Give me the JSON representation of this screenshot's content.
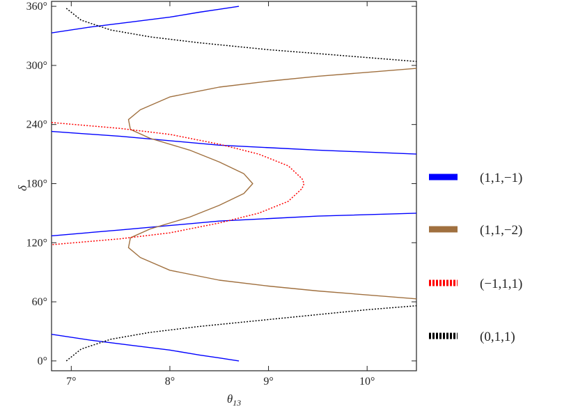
{
  "chart_data": {
    "type": "line",
    "title": "",
    "xlabel": "θ13",
    "ylabel": "δ",
    "xlim": [
      6.8,
      10.5
    ],
    "ylim": [
      -10,
      365
    ],
    "x_ticks": [
      {
        "value": 7,
        "label": "7°"
      },
      {
        "value": 8,
        "label": "8°"
      },
      {
        "value": 9,
        "label": "9°"
      },
      {
        "value": 10,
        "label": "10°"
      }
    ],
    "y_ticks": [
      {
        "value": 0,
        "label": "0°"
      },
      {
        "value": 60,
        "label": "60°"
      },
      {
        "value": 120,
        "label": "120°"
      },
      {
        "value": 180,
        "label": "180°"
      },
      {
        "value": 240,
        "label": "240°"
      },
      {
        "value": 300,
        "label": "300°"
      },
      {
        "value": 360,
        "label": "360°"
      }
    ],
    "grid": false,
    "legend_position": "right",
    "series": [
      {
        "name": "(1,1,−1)",
        "color": "#0000ff",
        "style": "solid",
        "segments": [
          [
            [
              6.8,
              333
            ],
            [
              7.2,
              339
            ],
            [
              7.6,
              344
            ],
            [
              8.0,
              349
            ],
            [
              8.3,
              354
            ],
            [
              8.5,
              357
            ],
            [
              8.7,
              360
            ]
          ],
          [
            [
              6.8,
              233
            ],
            [
              7.5,
              228
            ],
            [
              8.5,
              219
            ],
            [
              9.5,
              214
            ],
            [
              10.5,
              210
            ]
          ],
          [
            [
              6.8,
              127
            ],
            [
              7.5,
              133
            ],
            [
              8.5,
              142
            ],
            [
              9.5,
              147
            ],
            [
              10.5,
              150
            ]
          ],
          [
            [
              6.8,
              27
            ],
            [
              7.2,
              21
            ],
            [
              7.6,
              16
            ],
            [
              8.0,
              11
            ],
            [
              8.3,
              6
            ],
            [
              8.5,
              3
            ],
            [
              8.7,
              0
            ]
          ]
        ]
      },
      {
        "name": "(1,1,−2)",
        "color": "#a0703f",
        "style": "solid",
        "segments": [
          [
            [
              10.5,
              297
            ],
            [
              10.0,
              293
            ],
            [
              9.5,
              289
            ],
            [
              9.0,
              284
            ],
            [
              8.5,
              278
            ],
            [
              8.0,
              268
            ],
            [
              7.7,
              255
            ],
            [
              7.58,
              245
            ],
            [
              7.6,
              235
            ],
            [
              7.8,
              226
            ],
            [
              8.2,
              214
            ],
            [
              8.5,
              202
            ],
            [
              8.75,
              190
            ],
            [
              8.84,
              180
            ],
            [
              8.75,
              170
            ],
            [
              8.5,
              158
            ],
            [
              8.2,
              146
            ],
            [
              7.8,
              134
            ],
            [
              7.6,
              125
            ],
            [
              7.58,
              115
            ],
            [
              7.7,
              105
            ],
            [
              8.0,
              92
            ],
            [
              8.5,
              82
            ],
            [
              9.0,
              76
            ],
            [
              9.5,
              71
            ],
            [
              10.0,
              67
            ],
            [
              10.5,
              63
            ]
          ]
        ]
      },
      {
        "name": "(−1,1,1)",
        "color": "#ff0000",
        "style": "dotted",
        "segments": [
          [
            [
              6.8,
              242
            ],
            [
              7.5,
              236
            ],
            [
              8.0,
              230
            ],
            [
              8.5,
              220
            ],
            [
              8.9,
              210
            ],
            [
              9.2,
              198
            ],
            [
              9.34,
              185
            ],
            [
              9.36,
              180
            ],
            [
              9.34,
              175
            ],
            [
              9.2,
              162
            ],
            [
              8.9,
              150
            ],
            [
              8.5,
              140
            ],
            [
              8.0,
              130
            ],
            [
              7.5,
              124
            ],
            [
              6.8,
              118
            ]
          ]
        ]
      },
      {
        "name": "(0,1,1)",
        "color": "#000000",
        "style": "dotted",
        "segments": [
          [
            [
              6.95,
              358
            ],
            [
              7.1,
              346
            ],
            [
              7.4,
              336
            ],
            [
              7.8,
              329
            ],
            [
              8.3,
              323
            ],
            [
              9.0,
              316
            ],
            [
              9.5,
              312
            ],
            [
              10.0,
              308
            ],
            [
              10.5,
              304
            ]
          ],
          [
            [
              6.95,
              0
            ],
            [
              7.1,
              12
            ],
            [
              7.4,
              22
            ],
            [
              7.8,
              29
            ],
            [
              8.3,
              35
            ],
            [
              9.0,
              42
            ],
            [
              9.5,
              47
            ],
            [
              10.0,
              52
            ],
            [
              10.5,
              56
            ]
          ]
        ]
      }
    ]
  }
}
